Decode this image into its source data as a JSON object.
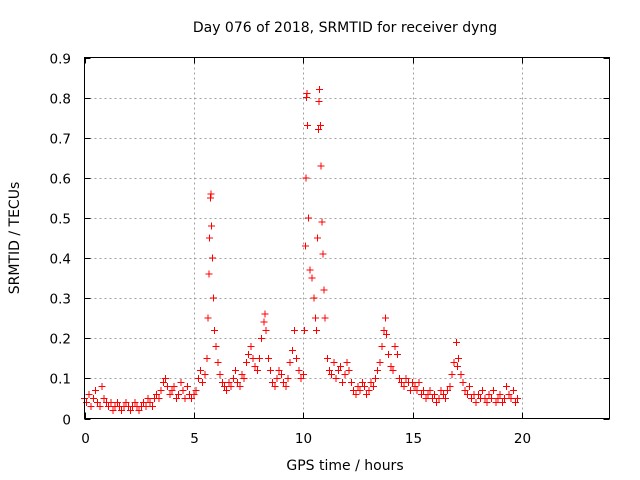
{
  "chart_data": {
    "type": "scatter",
    "title": "Day 076 of 2018, SRMTID for receiver dyng",
    "xlabel": "GPS time / hours",
    "ylabel": "SRMTID / TECUs",
    "xlim": [
      0,
      24
    ],
    "ylim": [
      0,
      0.9
    ],
    "xticks": [
      0,
      5,
      10,
      15,
      20
    ],
    "yticks": [
      0,
      0.1,
      0.2,
      0.3,
      0.4,
      0.5,
      0.6,
      0.7,
      0.8,
      0.9
    ],
    "grid": true,
    "marker": "+",
    "color": "#ff0000",
    "series": [
      {
        "name": "SRMTID",
        "points": [
          [
            0.0,
            0.05
          ],
          [
            0.1,
            0.04
          ],
          [
            0.2,
            0.06
          ],
          [
            0.3,
            0.03
          ],
          [
            0.4,
            0.05
          ],
          [
            0.5,
            0.07
          ],
          [
            0.6,
            0.04
          ],
          [
            0.7,
            0.03
          ],
          [
            0.8,
            0.08
          ],
          [
            0.9,
            0.05
          ],
          [
            1.0,
            0.04
          ],
          [
            1.1,
            0.03
          ],
          [
            1.2,
            0.04
          ],
          [
            1.3,
            0.02
          ],
          [
            1.4,
            0.03
          ],
          [
            1.5,
            0.04
          ],
          [
            1.6,
            0.03
          ],
          [
            1.7,
            0.02
          ],
          [
            1.8,
            0.03
          ],
          [
            1.9,
            0.04
          ],
          [
            2.0,
            0.03
          ],
          [
            2.1,
            0.02
          ],
          [
            2.2,
            0.03
          ],
          [
            2.3,
            0.04
          ],
          [
            2.4,
            0.03
          ],
          [
            2.5,
            0.02
          ],
          [
            2.6,
            0.03
          ],
          [
            2.7,
            0.04
          ],
          [
            2.8,
            0.03
          ],
          [
            2.9,
            0.05
          ],
          [
            3.0,
            0.04
          ],
          [
            3.1,
            0.03
          ],
          [
            3.2,
            0.05
          ],
          [
            3.3,
            0.06
          ],
          [
            3.4,
            0.05
          ],
          [
            3.5,
            0.07
          ],
          [
            3.6,
            0.09
          ],
          [
            3.7,
            0.1
          ],
          [
            3.8,
            0.08
          ],
          [
            3.9,
            0.06
          ],
          [
            4.0,
            0.07
          ],
          [
            4.1,
            0.08
          ],
          [
            4.2,
            0.05
          ],
          [
            4.3,
            0.06
          ],
          [
            4.4,
            0.09
          ],
          [
            4.5,
            0.07
          ],
          [
            4.6,
            0.05
          ],
          [
            4.7,
            0.08
          ],
          [
            4.8,
            0.06
          ],
          [
            4.9,
            0.05
          ],
          [
            5.0,
            0.06
          ],
          [
            5.1,
            0.07
          ],
          [
            5.2,
            0.1
          ],
          [
            5.3,
            0.12
          ],
          [
            5.4,
            0.09
          ],
          [
            5.5,
            0.11
          ],
          [
            5.6,
            0.15
          ],
          [
            5.65,
            0.25
          ],
          [
            5.7,
            0.36
          ],
          [
            5.72,
            0.45
          ],
          [
            5.75,
            0.55
          ],
          [
            5.78,
            0.56
          ],
          [
            5.8,
            0.48
          ],
          [
            5.85,
            0.4
          ],
          [
            5.9,
            0.3
          ],
          [
            5.95,
            0.22
          ],
          [
            6.0,
            0.18
          ],
          [
            6.1,
            0.14
          ],
          [
            6.2,
            0.11
          ],
          [
            6.3,
            0.09
          ],
          [
            6.4,
            0.08
          ],
          [
            6.5,
            0.07
          ],
          [
            6.6,
            0.09
          ],
          [
            6.7,
            0.08
          ],
          [
            6.8,
            0.1
          ],
          [
            6.9,
            0.12
          ],
          [
            7.0,
            0.09
          ],
          [
            7.1,
            0.08
          ],
          [
            7.2,
            0.11
          ],
          [
            7.3,
            0.1
          ],
          [
            7.4,
            0.14
          ],
          [
            7.5,
            0.16
          ],
          [
            7.6,
            0.18
          ],
          [
            7.7,
            0.15
          ],
          [
            7.8,
            0.13
          ],
          [
            7.9,
            0.12
          ],
          [
            8.0,
            0.15
          ],
          [
            8.1,
            0.2
          ],
          [
            8.2,
            0.24
          ],
          [
            8.25,
            0.26
          ],
          [
            8.3,
            0.22
          ],
          [
            8.4,
            0.15
          ],
          [
            8.5,
            0.12
          ],
          [
            8.6,
            0.09
          ],
          [
            8.7,
            0.08
          ],
          [
            8.8,
            0.1
          ],
          [
            8.9,
            0.12
          ],
          [
            9.0,
            0.11
          ],
          [
            9.1,
            0.09
          ],
          [
            9.2,
            0.08
          ],
          [
            9.3,
            0.1
          ],
          [
            9.4,
            0.14
          ],
          [
            9.5,
            0.17
          ],
          [
            9.6,
            0.22
          ],
          [
            9.7,
            0.15
          ],
          [
            9.8,
            0.12
          ],
          [
            9.9,
            0.1
          ],
          [
            10.0,
            0.11
          ],
          [
            10.05,
            0.22
          ],
          [
            10.1,
            0.43
          ],
          [
            10.12,
            0.6
          ],
          [
            10.15,
            0.8
          ],
          [
            10.18,
            0.81
          ],
          [
            10.2,
            0.73
          ],
          [
            10.25,
            0.5
          ],
          [
            10.3,
            0.37
          ],
          [
            10.4,
            0.35
          ],
          [
            10.5,
            0.3
          ],
          [
            10.55,
            0.25
          ],
          [
            10.6,
            0.22
          ],
          [
            10.65,
            0.45
          ],
          [
            10.7,
            0.72
          ],
          [
            10.72,
            0.79
          ],
          [
            10.75,
            0.82
          ],
          [
            10.78,
            0.73
          ],
          [
            10.8,
            0.63
          ],
          [
            10.85,
            0.49
          ],
          [
            10.9,
            0.41
          ],
          [
            10.95,
            0.32
          ],
          [
            11.0,
            0.25
          ],
          [
            11.1,
            0.15
          ],
          [
            11.2,
            0.12
          ],
          [
            11.3,
            0.11
          ],
          [
            11.4,
            0.14
          ],
          [
            11.5,
            0.1
          ],
          [
            11.6,
            0.12
          ],
          [
            11.7,
            0.13
          ],
          [
            11.8,
            0.09
          ],
          [
            11.9,
            0.11
          ],
          [
            12.0,
            0.14
          ],
          [
            12.1,
            0.12
          ],
          [
            12.2,
            0.09
          ],
          [
            12.3,
            0.07
          ],
          [
            12.4,
            0.06
          ],
          [
            12.5,
            0.08
          ],
          [
            12.6,
            0.07
          ],
          [
            12.7,
            0.09
          ],
          [
            12.8,
            0.08
          ],
          [
            12.9,
            0.06
          ],
          [
            13.0,
            0.07
          ],
          [
            13.1,
            0.09
          ],
          [
            13.2,
            0.08
          ],
          [
            13.3,
            0.1
          ],
          [
            13.4,
            0.12
          ],
          [
            13.5,
            0.14
          ],
          [
            13.6,
            0.18
          ],
          [
            13.7,
            0.22
          ],
          [
            13.75,
            0.25
          ],
          [
            13.8,
            0.21
          ],
          [
            13.9,
            0.16
          ],
          [
            14.0,
            0.13
          ],
          [
            14.1,
            0.12
          ],
          [
            14.2,
            0.18
          ],
          [
            14.3,
            0.16
          ],
          [
            14.4,
            0.1
          ],
          [
            14.5,
            0.09
          ],
          [
            14.6,
            0.08
          ],
          [
            14.7,
            0.1
          ],
          [
            14.8,
            0.09
          ],
          [
            14.9,
            0.07
          ],
          [
            15.0,
            0.09
          ],
          [
            15.1,
            0.08
          ],
          [
            15.2,
            0.07
          ],
          [
            15.3,
            0.09
          ],
          [
            15.4,
            0.06
          ],
          [
            15.5,
            0.07
          ],
          [
            15.6,
            0.05
          ],
          [
            15.7,
            0.06
          ],
          [
            15.8,
            0.07
          ],
          [
            15.9,
            0.05
          ],
          [
            16.0,
            0.06
          ],
          [
            16.1,
            0.04
          ],
          [
            16.2,
            0.05
          ],
          [
            16.3,
            0.07
          ],
          [
            16.4,
            0.06
          ],
          [
            16.5,
            0.05
          ],
          [
            16.6,
            0.07
          ],
          [
            16.7,
            0.08
          ],
          [
            16.8,
            0.11
          ],
          [
            16.9,
            0.14
          ],
          [
            17.0,
            0.19
          ],
          [
            17.05,
            0.13
          ],
          [
            17.1,
            0.15
          ],
          [
            17.2,
            0.11
          ],
          [
            17.3,
            0.09
          ],
          [
            17.4,
            0.07
          ],
          [
            17.5,
            0.06
          ],
          [
            17.6,
            0.08
          ],
          [
            17.7,
            0.05
          ],
          [
            17.8,
            0.06
          ],
          [
            17.9,
            0.04
          ],
          [
            18.0,
            0.06
          ],
          [
            18.1,
            0.05
          ],
          [
            18.2,
            0.07
          ],
          [
            18.3,
            0.05
          ],
          [
            18.4,
            0.04
          ],
          [
            18.5,
            0.06
          ],
          [
            18.6,
            0.05
          ],
          [
            18.7,
            0.07
          ],
          [
            18.8,
            0.04
          ],
          [
            18.9,
            0.05
          ],
          [
            19.0,
            0.06
          ],
          [
            19.1,
            0.04
          ],
          [
            19.2,
            0.05
          ],
          [
            19.3,
            0.08
          ],
          [
            19.4,
            0.06
          ],
          [
            19.5,
            0.05
          ],
          [
            19.6,
            0.07
          ],
          [
            19.7,
            0.04
          ],
          [
            19.8,
            0.05
          ]
        ]
      }
    ]
  }
}
